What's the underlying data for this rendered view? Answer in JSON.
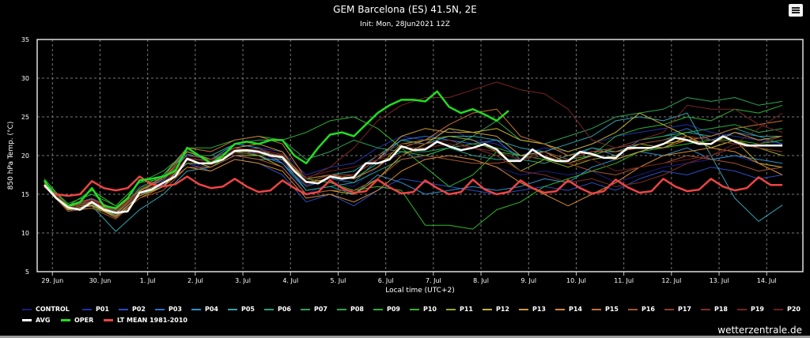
{
  "header": {
    "title": "GEM Barcelona (ES) 41.5N, 2E",
    "subtitle": "Init: Mon, 28Jun2021 12Z",
    "menu_icon": "hamburger-menu-icon"
  },
  "watermark": "wetterzentrale.de",
  "chart_data": {
    "type": "line",
    "title": "GEM Barcelona (ES) 41.5N, 2E",
    "subtitle": "Init: Mon, 28Jun2021 12Z",
    "xlabel": "Local time (UTC+2)",
    "ylabel": "850 hPa Temp. (°C)",
    "ylim": [
      5,
      35
    ],
    "yticks": [
      "5",
      "10",
      "15",
      "20",
      "25",
      "30",
      "35"
    ],
    "xlim_days_from_29jun": [
      -0.32,
      15.76
    ],
    "xticks": [
      "29. Jun",
      "30. Jun",
      "1. Jul",
      "2. Jul",
      "3. Jul",
      "4. Jul",
      "5. Jul",
      "6. Jul",
      "7. Jul",
      "8. Jul",
      "9. Jul",
      "10. Jul",
      "11. Jul",
      "12. Jul",
      "13. Jul",
      "14. Jul"
    ],
    "grid": true,
    "legend_position": "bottom",
    "x_start_days": -0.17,
    "member_step_days": 0.5,
    "main_step_days": 0.25,
    "members": [
      {
        "name": "CONTROL",
        "color": "#1c1c80",
        "values": [
          16.0,
          13.0,
          13.5,
          12.5,
          15.0,
          16.0,
          19.0,
          18.5,
          20.0,
          20.5,
          19.0,
          15.0,
          16.5,
          16.0,
          18.5,
          20.5,
          19.5,
          20.0,
          19.5,
          18.5,
          17.5,
          18.0,
          17.5,
          18.0,
          16.5,
          17.5,
          18.5,
          19.0,
          19.5,
          20.0,
          19.0,
          18.5
        ]
      },
      {
        "name": "P01",
        "color": "#2232a8",
        "values": [
          16.5,
          13.5,
          14.5,
          13.0,
          16.0,
          17.0,
          20.0,
          20.0,
          21.5,
          21.0,
          20.5,
          17.5,
          18.5,
          19.0,
          21.0,
          22.5,
          22.0,
          23.5,
          22.0,
          21.5,
          20.0,
          21.0,
          20.5,
          21.5,
          22.5,
          23.0,
          23.5,
          24.0,
          23.0,
          22.5,
          22.0,
          21.5
        ]
      },
      {
        "name": "P02",
        "color": "#2a4cc0",
        "values": [
          16.0,
          12.8,
          13.8,
          12.3,
          14.8,
          16.2,
          19.0,
          18.0,
          19.5,
          19.0,
          17.5,
          14.0,
          15.0,
          13.5,
          15.5,
          17.0,
          16.5,
          16.0,
          15.5,
          15.0,
          15.5,
          16.0,
          15.5,
          16.5,
          15.5,
          17.0,
          18.0,
          17.5,
          18.5,
          18.0,
          17.0,
          17.5
        ]
      },
      {
        "name": "P03",
        "color": "#2e70d0",
        "values": [
          16.3,
          13.4,
          14.2,
          12.8,
          15.5,
          16.8,
          20.2,
          19.5,
          21.0,
          20.0,
          19.0,
          16.0,
          17.0,
          16.5,
          19.5,
          22.0,
          22.5,
          22.0,
          21.5,
          22.0,
          19.5,
          20.5,
          19.5,
          21.0,
          20.0,
          22.0,
          22.5,
          23.5,
          22.0,
          23.0,
          22.5,
          21.5
        ]
      },
      {
        "name": "P04",
        "color": "#2f90d0",
        "values": [
          16.1,
          13.2,
          13.8,
          12.0,
          15.0,
          17.5,
          20.5,
          19.5,
          21.5,
          21.0,
          19.0,
          15.5,
          16.0,
          15.0,
          17.5,
          16.5,
          15.0,
          15.5,
          16.0,
          15.5,
          16.0,
          17.0,
          16.5,
          18.5,
          19.5,
          20.5,
          20.0,
          21.0,
          19.5,
          20.0,
          19.5,
          19.0
        ]
      },
      {
        "name": "P05",
        "color": "#2fa4b0",
        "values": [
          16.4,
          13.6,
          13.5,
          10.2,
          13.0,
          15.0,
          18.0,
          18.5,
          20.0,
          19.5,
          19.5,
          17.0,
          17.5,
          18.0,
          20.0,
          22.0,
          21.5,
          22.5,
          22.5,
          22.0,
          21.0,
          20.5,
          21.5,
          22.5,
          24.5,
          25.0,
          24.5,
          25.5,
          20.0,
          14.5,
          11.5,
          13.6
        ]
      },
      {
        "name": "P06",
        "color": "#2aa080",
        "values": [
          16.2,
          13.3,
          14.3,
          12.8,
          15.0,
          16.0,
          19.5,
          19.5,
          20.5,
          21.0,
          19.5,
          15.5,
          16.0,
          16.5,
          18.0,
          19.5,
          20.0,
          21.0,
          20.0,
          19.5,
          19.5,
          19.0,
          20.0,
          21.0,
          20.5,
          21.5,
          22.0,
          23.0,
          22.5,
          23.5,
          22.5,
          22.5
        ]
      },
      {
        "name": "P07",
        "color": "#2aa45a",
        "values": [
          16.0,
          13.5,
          14.0,
          12.5,
          15.5,
          17.0,
          20.0,
          20.0,
          21.5,
          22.0,
          22.0,
          19.5,
          20.5,
          22.0,
          21.0,
          20.5,
          20.5,
          21.0,
          22.5,
          24.5,
          22.0,
          21.5,
          22.5,
          23.5,
          25.0,
          25.5,
          26.0,
          27.5,
          27.0,
          27.5,
          26.5,
          27.0
        ]
      },
      {
        "name": "P08",
        "color": "#2aaa44",
        "values": [
          16.6,
          13.8,
          15.0,
          13.5,
          16.5,
          18.0,
          20.5,
          19.5,
          21.0,
          20.5,
          20.0,
          17.0,
          17.5,
          17.0,
          19.0,
          20.5,
          20.0,
          21.0,
          21.5,
          21.0,
          20.0,
          20.5,
          19.5,
          20.0,
          21.0,
          22.0,
          22.5,
          23.0,
          23.5,
          24.0,
          23.0,
          23.5
        ]
      },
      {
        "name": "P09",
        "color": "#2ab232",
        "values": [
          16.5,
          13.0,
          13.2,
          12.4,
          15.8,
          17.5,
          21.0,
          21.0,
          22.0,
          22.5,
          22.0,
          23.0,
          24.5,
          25.0,
          23.5,
          21.0,
          18.5,
          16.0,
          17.5,
          20.5,
          20.0,
          19.5,
          19.0,
          20.0,
          22.5,
          23.5,
          24.0,
          25.0,
          24.5,
          26.0,
          25.5,
          26.5
        ]
      },
      {
        "name": "P10",
        "color": "#30b824",
        "values": [
          17.0,
          13.5,
          15.5,
          13.5,
          16.5,
          17.0,
          19.5,
          18.5,
          20.5,
          20.0,
          20.0,
          17.0,
          16.5,
          15.5,
          16.0,
          15.5,
          11.0,
          11.0,
          10.5,
          13.0,
          14.0,
          16.0,
          17.0,
          18.0,
          19.0,
          20.5,
          21.0,
          21.5,
          22.0,
          22.0,
          21.5,
          22.0
        ]
      },
      {
        "name": "P11",
        "color": "#9aaa22",
        "values": [
          16.2,
          13.2,
          13.8,
          12.5,
          15.2,
          16.5,
          19.0,
          19.0,
          20.5,
          20.5,
          20.0,
          16.5,
          17.5,
          17.0,
          18.5,
          21.5,
          22.0,
          22.5,
          22.0,
          20.5,
          18.0,
          19.5,
          18.5,
          19.5,
          20.0,
          21.5,
          21.0,
          22.5,
          21.0,
          22.0,
          21.0,
          20.0
        ]
      },
      {
        "name": "P12",
        "color": "#c8b428",
        "values": [
          16.0,
          13.0,
          13.6,
          12.2,
          14.8,
          16.0,
          19.5,
          18.5,
          20.0,
          20.0,
          18.5,
          15.0,
          15.5,
          15.0,
          17.0,
          20.0,
          21.5,
          23.5,
          23.0,
          23.5,
          22.0,
          21.5,
          20.5,
          21.5,
          23.0,
          25.5,
          24.0,
          22.5,
          21.0,
          22.0,
          19.0,
          18.5
        ]
      },
      {
        "name": "P13",
        "color": "#d09a30",
        "values": [
          16.3,
          13.4,
          14.0,
          12.6,
          15.4,
          17.0,
          20.5,
          19.5,
          21.0,
          21.5,
          20.5,
          16.5,
          17.0,
          17.5,
          19.5,
          22.5,
          23.5,
          23.0,
          23.0,
          22.5,
          20.0,
          20.5,
          19.0,
          20.0,
          19.5,
          20.5,
          21.5,
          22.0,
          21.5,
          23.0,
          22.0,
          22.5
        ]
      },
      {
        "name": "P14",
        "color": "#d88a30",
        "values": [
          16.1,
          13.1,
          13.5,
          12.0,
          14.5,
          16.0,
          18.5,
          18.0,
          19.5,
          19.0,
          18.0,
          14.5,
          15.0,
          14.0,
          15.5,
          18.0,
          19.5,
          20.0,
          19.5,
          18.5,
          16.5,
          15.0,
          13.5,
          15.0,
          16.5,
          18.5,
          20.0,
          20.5,
          21.0,
          20.5,
          19.0,
          17.5
        ]
      },
      {
        "name": "P15",
        "color": "#c87030",
        "values": [
          16.4,
          13.6,
          14.4,
          13.0,
          15.6,
          17.2,
          21.0,
          20.5,
          22.0,
          22.5,
          21.5,
          17.0,
          17.5,
          17.0,
          18.5,
          21.0,
          22.0,
          24.0,
          25.5,
          26.0,
          22.5,
          21.5,
          20.0,
          20.5,
          20.5,
          21.0,
          21.0,
          22.0,
          22.5,
          23.5,
          24.0,
          24.5
        ]
      },
      {
        "name": "P16",
        "color": "#a85430",
        "values": [
          16.0,
          12.8,
          13.2,
          11.8,
          14.5,
          15.5,
          18.5,
          18.5,
          20.0,
          19.5,
          18.5,
          15.0,
          15.5,
          15.5,
          17.0,
          19.5,
          20.0,
          19.5,
          19.0,
          19.0,
          19.5,
          20.0,
          19.0,
          18.0,
          17.5,
          18.5,
          19.0,
          20.0,
          19.5,
          19.0,
          18.0,
          18.5
        ]
      },
      {
        "name": "P17",
        "color": "#903c30",
        "values": [
          16.5,
          13.5,
          14.2,
          12.9,
          15.6,
          17.0,
          20.0,
          19.5,
          21.0,
          20.5,
          20.0,
          16.5,
          17.5,
          17.5,
          19.5,
          21.0,
          21.0,
          21.5,
          21.0,
          20.5,
          19.5,
          20.5,
          19.5,
          20.5,
          21.0,
          21.5,
          22.0,
          22.5,
          22.0,
          21.5,
          21.0,
          20.5
        ]
      },
      {
        "name": "P18",
        "color": "#802c2c",
        "values": [
          16.2,
          13.3,
          14.1,
          12.7,
          15.1,
          16.3,
          19.4,
          18.8,
          20.3,
          20.3,
          19.4,
          16.2,
          17.0,
          17.5,
          20.0,
          21.5,
          21.5,
          22.0,
          21.0,
          20.0,
          18.0,
          17.5,
          16.5,
          17.0,
          16.0,
          16.5,
          17.5,
          19.0,
          20.0,
          21.0,
          21.5,
          22.5
        ]
      },
      {
        "name": "P19",
        "color": "#782424",
        "values": [
          16.1,
          13.2,
          13.9,
          12.4,
          15.0,
          16.4,
          19.6,
          19.2,
          20.8,
          20.7,
          20.2,
          17.0,
          18.5,
          21.0,
          24.5,
          26.5,
          27.5,
          27.5,
          28.5,
          29.5,
          28.5,
          28.0,
          26.0,
          22.0,
          21.0,
          22.0,
          23.0,
          26.5,
          26.0,
          26.0,
          24.0,
          23.0
        ]
      },
      {
        "name": "P20",
        "color": "#6a1e1e",
        "values": [
          16.3,
          13.5,
          14.3,
          12.9,
          15.3,
          16.6,
          19.7,
          19.3,
          20.7,
          20.9,
          20.1,
          17.2,
          18.0,
          18.5,
          19.5,
          20.0,
          21.0,
          21.5,
          21.0,
          20.5,
          19.5,
          20.0,
          19.0,
          19.5,
          18.0,
          18.5,
          19.0,
          19.5,
          20.0,
          21.5,
          23.5,
          25.5
        ]
      }
    ],
    "avg": {
      "name": "AVG",
      "color": "#ffffff",
      "values": [
        16.2,
        14.5,
        13.3,
        13.0,
        14.0,
        13.0,
        12.6,
        12.8,
        15.2,
        15.6,
        16.5,
        17.3,
        19.6,
        19.0,
        19.0,
        19.5,
        20.6,
        20.7,
        20.5,
        20.0,
        19.8,
        18.0,
        16.6,
        16.4,
        17.3,
        17.0,
        17.2,
        19.0,
        19.0,
        19.5,
        21.2,
        20.7,
        20.8,
        21.8,
        21.2,
        20.7,
        21.0,
        21.5,
        20.8,
        19.3,
        19.3,
        20.8,
        19.8,
        19.3,
        19.3,
        20.5,
        20.2,
        19.7,
        19.7,
        21.0,
        21.0,
        21.0,
        21.5,
        22.3,
        22.0,
        21.5,
        21.5,
        22.5,
        21.8,
        21.3,
        21.3,
        21.3,
        21.3
      ]
    },
    "oper": {
      "name": "OPER",
      "color": "#22dd22",
      "values": [
        16.8,
        14.5,
        13.5,
        14.0,
        15.8,
        13.5,
        13.2,
        14.5,
        16.8,
        17.0,
        17.3,
        18.0,
        21.0,
        20.0,
        19.0,
        20.0,
        21.5,
        21.8,
        21.5,
        22.0,
        22.0,
        20.0,
        19.0,
        21.0,
        22.7,
        23.0,
        22.5,
        24.0,
        25.5,
        26.5,
        27.2,
        27.2,
        27.0,
        28.3,
        26.3,
        25.5,
        26.0,
        25.3,
        24.5,
        25.8
      ]
    },
    "lt_mean": {
      "name": "LT MEAN 1981-2010",
      "color": "#ee4444",
      "values": [
        16.0,
        15.0,
        14.8,
        15.0,
        16.7,
        15.8,
        15.5,
        15.8,
        17.3,
        16.3,
        16.0,
        16.3,
        17.3,
        16.3,
        15.8,
        16.0,
        17.0,
        16.0,
        15.3,
        15.5,
        16.8,
        15.8,
        15.0,
        15.3,
        16.8,
        15.8,
        15.2,
        15.4,
        16.9,
        15.9,
        15.1,
        15.3,
        16.8,
        15.8,
        15.0,
        15.3,
        16.9,
        15.6,
        15.0,
        15.3,
        16.8,
        15.8,
        15.2,
        15.4,
        16.8,
        15.8,
        15.1,
        15.4,
        16.9,
        15.9,
        15.2,
        15.4,
        17.0,
        16.0,
        15.4,
        15.6,
        17.0,
        16.0,
        15.5,
        15.8,
        17.2,
        16.2,
        16.2
      ]
    }
  }
}
